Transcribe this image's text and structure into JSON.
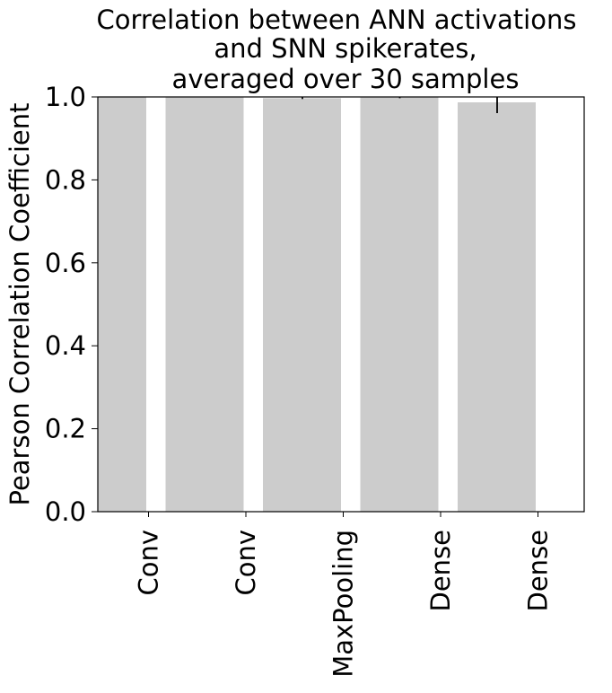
{
  "chart_data": {
    "type": "bar",
    "title_lines": [
      "Correlation between ANN activations",
      "and SNN spikerates,",
      "averaged over 30 samples"
    ],
    "xlabel": "",
    "ylabel": "Pearson Correlation Coefficient",
    "categories": [
      "Conv",
      "Conv",
      "MaxPooling",
      "Dense",
      "Dense"
    ],
    "values": [
      1.0,
      1.0,
      0.997,
      0.999,
      0.987
    ],
    "errors": [
      0.0,
      0.0,
      0.002,
      0.002,
      0.026
    ],
    "ylim": [
      0,
      1.0
    ],
    "yticks": [
      "0.0",
      "0.2",
      "0.4",
      "0.6",
      "0.8",
      "1.0"
    ],
    "bar_color": "#cccccc",
    "error_color": "#000000",
    "grid": false,
    "legend": "none"
  }
}
